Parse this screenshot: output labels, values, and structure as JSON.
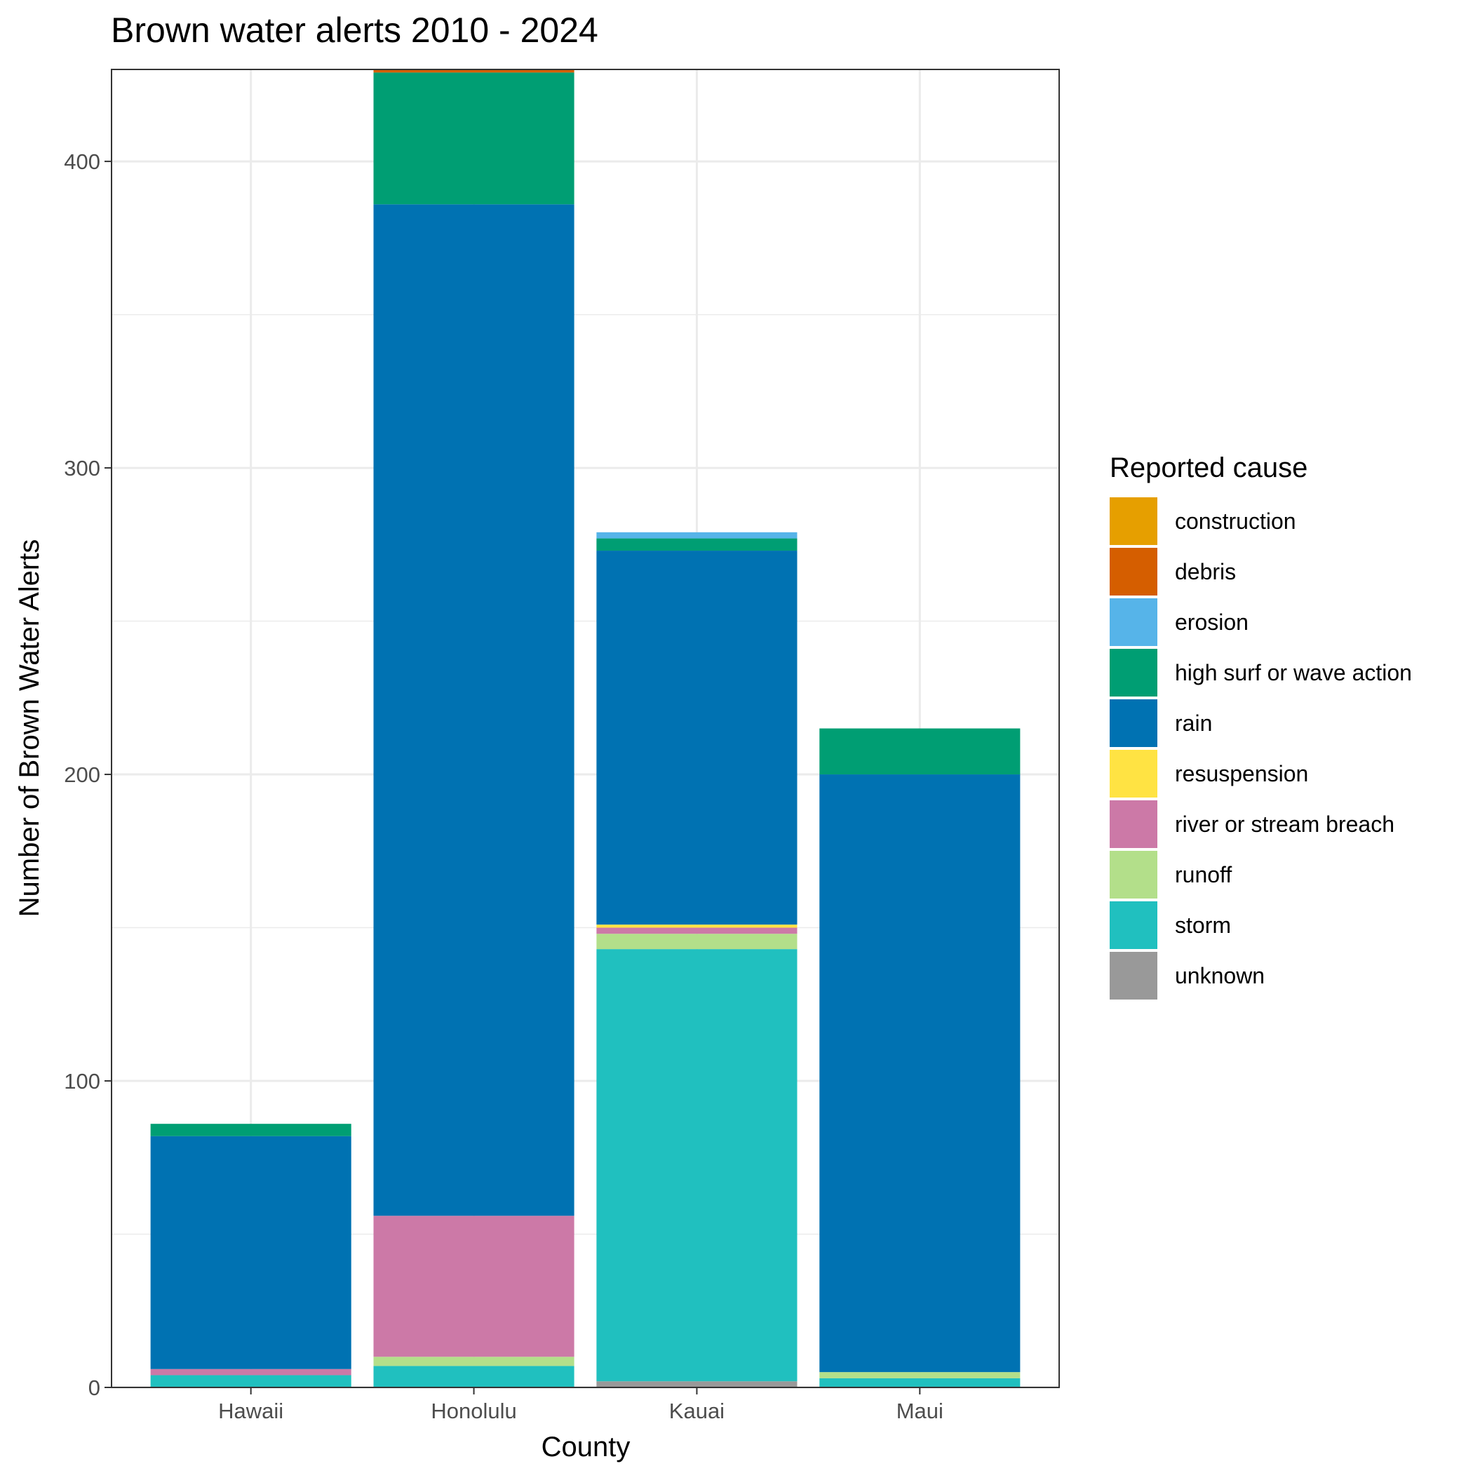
{
  "chart_data": {
    "type": "bar",
    "stacked": true,
    "title": "Brown water alerts 2010 - 2024",
    "xlabel": "County",
    "ylabel": "Number of Brown Water Alerts",
    "ylim": [
      0,
      430
    ],
    "yticks": [
      0,
      100,
      200,
      300,
      400
    ],
    "grid": true,
    "legend_placement": "right",
    "legend_title": "Reported cause",
    "categories": [
      "Hawaii",
      "Honolulu",
      "Kauai",
      "Maui"
    ],
    "series": [
      {
        "name": "construction",
        "color": "#E69F00",
        "values": [
          0,
          0,
          0,
          0
        ]
      },
      {
        "name": "debris",
        "color": "#D55E00",
        "values": [
          0,
          1,
          0,
          0
        ]
      },
      {
        "name": "erosion",
        "color": "#56B4E9",
        "values": [
          0,
          0,
          2,
          0
        ]
      },
      {
        "name": "high surf or wave action",
        "color": "#009E73",
        "values": [
          4,
          43,
          4,
          15
        ]
      },
      {
        "name": "rain",
        "color": "#0072B2",
        "values": [
          76,
          330,
          122,
          195
        ]
      },
      {
        "name": "resuspension",
        "color": "#FFE343",
        "values": [
          0,
          0,
          1,
          0
        ]
      },
      {
        "name": "river or stream breach",
        "color": "#CC79A7",
        "values": [
          2,
          46,
          2,
          0
        ]
      },
      {
        "name": "runoff",
        "color": "#B3DF8A",
        "values": [
          0,
          3,
          5,
          2
        ]
      },
      {
        "name": "storm",
        "color": "#20C0BF",
        "values": [
          4,
          7,
          141,
          3
        ]
      },
      {
        "name": "unknown",
        "color": "#999999",
        "values": [
          0,
          0,
          2,
          0
        ]
      }
    ]
  }
}
